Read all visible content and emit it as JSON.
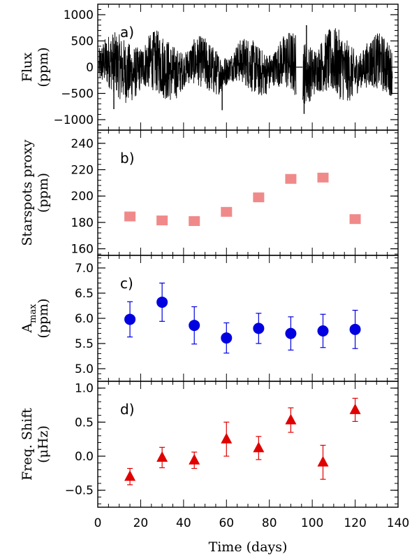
{
  "chart_data": [
    {
      "panel": "a)",
      "type": "line",
      "ylabel_line1": "Flux",
      "ylabel_line2": "(ppm)",
      "xlim": [
        0,
        140
      ],
      "ylim": [
        -1200,
        1200
      ],
      "yticks": [
        -1000,
        -500,
        0,
        500,
        1000
      ],
      "ytick_labels": [
        "−1000",
        "−500",
        "0",
        "500",
        "1000"
      ],
      "color": "#000000",
      "segments": [
        {
          "start": 0.5,
          "end": 92.5,
          "amp": 560
        },
        {
          "start": 95.5,
          "end": 137.5,
          "amp": 600
        }
      ],
      "gap": [
        92.5,
        95.5
      ],
      "spikes": [
        {
          "x": 96.2,
          "y": -890
        },
        {
          "x": 97.3,
          "y": 800
        },
        {
          "x": 58.0,
          "y": -820
        },
        {
          "x": 7.5,
          "y": -800
        }
      ]
    },
    {
      "panel": "b)",
      "type": "scatter",
      "ylabel_line1": "Starspots proxy",
      "ylabel_line2": "(ppm)",
      "xlim": [
        0,
        140
      ],
      "ylim": [
        155,
        250
      ],
      "yticks": [
        160,
        180,
        200,
        220,
        240
      ],
      "ytick_labels": [
        "160",
        "180",
        "200",
        "220",
        "240"
      ],
      "marker": "square",
      "color": "#f08a8a",
      "x": [
        15,
        30,
        45,
        60,
        75,
        90,
        105,
        120
      ],
      "y": [
        184.5,
        181.5,
        181,
        188,
        199,
        213,
        214,
        182.5
      ]
    },
    {
      "panel": "c)",
      "type": "scatter",
      "ylabel_line1": "A_max",
      "ylabel_main": "A",
      "ylabel_sub": "max",
      "ylabel_line2": "(ppm)",
      "xlim": [
        0,
        140
      ],
      "ylim": [
        4.75,
        7.25
      ],
      "yticks": [
        5.0,
        5.5,
        6.0,
        6.5,
        7.0
      ],
      "ytick_labels": [
        "5.0",
        "5.5",
        "6.0",
        "6.5",
        "7.0"
      ],
      "marker": "circle",
      "color": "#0000e0",
      "x": [
        15,
        30,
        45,
        60,
        75,
        90,
        105,
        120
      ],
      "y": [
        5.98,
        6.32,
        5.86,
        5.61,
        5.8,
        5.7,
        5.75,
        5.78
      ],
      "yerr": [
        0.35,
        0.38,
        0.37,
        0.3,
        0.3,
        0.33,
        0.33,
        0.38
      ]
    },
    {
      "panel": "d)",
      "type": "scatter",
      "ylabel_line1": "Freq. Shift",
      "ylabel_line2": "(μHz)",
      "xlabel": "Time (days)",
      "xlim": [
        0,
        140
      ],
      "ylim": [
        -0.75,
        1.1
      ],
      "yticks": [
        -0.5,
        0.0,
        0.5,
        1.0
      ],
      "ytick_labels": [
        "−0.5",
        "0.0",
        "0.5",
        "1.0"
      ],
      "xticks": [
        0,
        20,
        40,
        60,
        80,
        100,
        120,
        140
      ],
      "xtick_labels": [
        "0",
        "20",
        "40",
        "60",
        "80",
        "100",
        "120",
        "140"
      ],
      "marker": "triangle",
      "color": "#e00000",
      "x": [
        15,
        30,
        45,
        60,
        75,
        90,
        105,
        120
      ],
      "y": [
        -0.3,
        -0.02,
        -0.06,
        0.25,
        0.12,
        0.53,
        -0.09,
        0.68
      ],
      "yerr": [
        0.12,
        0.15,
        0.12,
        0.25,
        0.17,
        0.18,
        0.25,
        0.17
      ]
    }
  ]
}
